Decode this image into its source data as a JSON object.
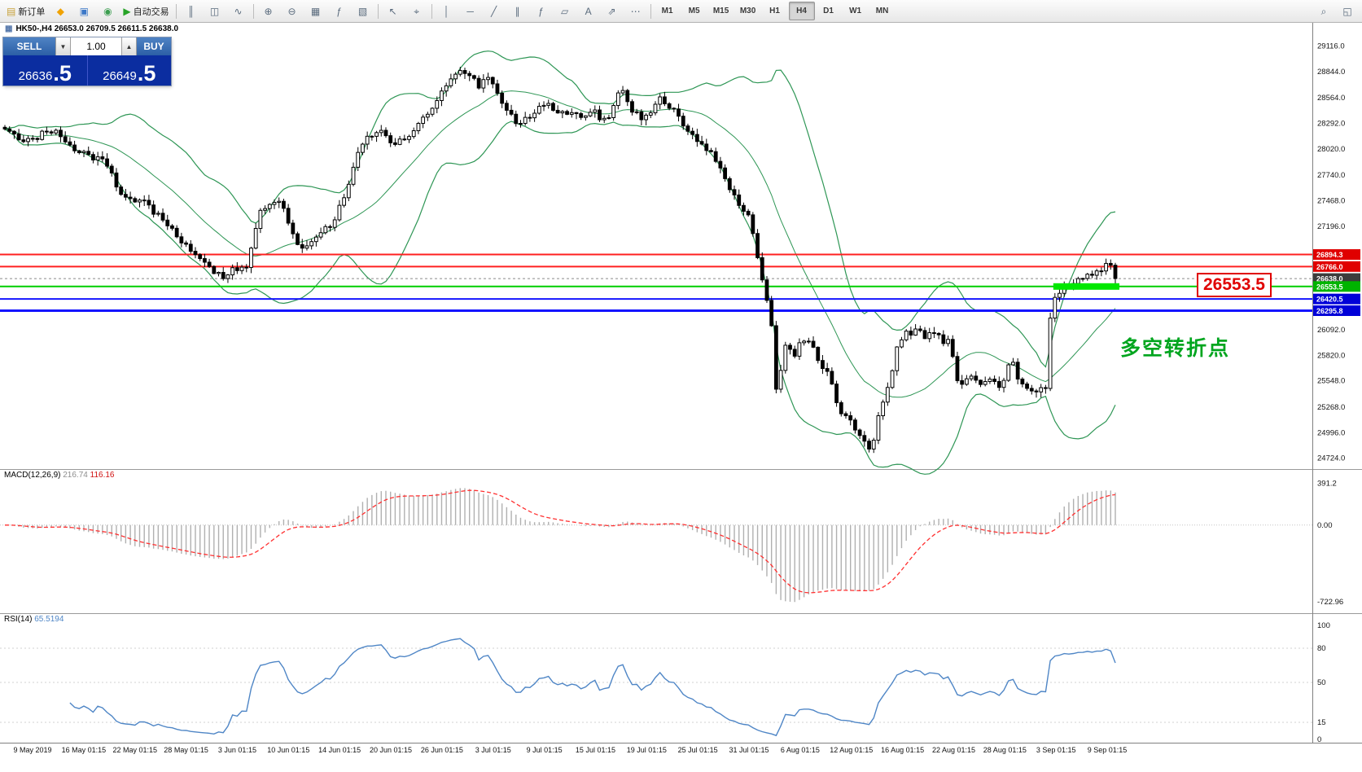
{
  "toolbar": {
    "groups": [
      {
        "items": [
          {
            "name": "new-order-button",
            "icon": "order-icon",
            "glyph": "▤",
            "glyph_color": "#c8a23a",
            "label": "新订单"
          }
        ]
      },
      {
        "items": [
          {
            "name": "metaquotes-market-button",
            "icon": "diamond-icon",
            "glyph": "◆",
            "glyph_color": "#f0a202"
          },
          {
            "name": "data-window-button",
            "icon": "monitor-icon",
            "glyph": "▣",
            "glyph_color": "#3c78c8"
          },
          {
            "name": "community-button",
            "icon": "globe-icon",
            "glyph": "◉",
            "glyph_color": "#3c9e50"
          }
        ]
      },
      {
        "items": [
          {
            "name": "autotrading-button",
            "icon": "play-icon",
            "glyph": "▶",
            "glyph_color": "#27a327",
            "label": "自动交易"
          }
        ]
      },
      {
        "sep": true
      },
      {
        "items": [
          {
            "name": "bar-chart-button",
            "icon": "bars-icon",
            "glyph": "║"
          },
          {
            "name": "candlestick-chart-button",
            "icon": "candles-icon",
            "glyph": "◫"
          },
          {
            "name": "line-chart-button",
            "icon": "line-icon",
            "glyph": "∿"
          }
        ]
      },
      {
        "sep": true
      },
      {
        "items": [
          {
            "name": "zoom-in-button",
            "icon": "zoom-in-icon",
            "glyph": "⊕"
          },
          {
            "name": "zoom-out-button",
            "icon": "zoom-out-icon",
            "glyph": "⊖"
          },
          {
            "name": "tile-windows-button",
            "icon": "grid-icon",
            "glyph": "▦"
          },
          {
            "name": "indicators-button",
            "icon": "function-icon",
            "glyph": "ƒ"
          },
          {
            "name": "templates-button",
            "icon": "template-icon",
            "glyph": "▧"
          }
        ]
      },
      {
        "sep": true
      },
      {
        "items": [
          {
            "name": "cursor-button",
            "icon": "cursor-icon",
            "glyph": "↖"
          },
          {
            "name": "crosshair-button",
            "icon": "crosshair-icon",
            "glyph": "⌖"
          }
        ]
      },
      {
        "sep": true
      },
      {
        "items": [
          {
            "name": "vertical-line-button",
            "icon": "vline-icon",
            "glyph": "│"
          },
          {
            "name": "horizontal-line-button",
            "icon": "hline-icon",
            "glyph": "─"
          },
          {
            "name": "trendline-button",
            "icon": "trendline-icon",
            "glyph": "╱"
          },
          {
            "name": "equidistant-channel-button",
            "icon": "channel-icon",
            "glyph": "∥"
          },
          {
            "name": "fibonacci-button",
            "icon": "fibonacci-icon",
            "glyph": "ƒ"
          },
          {
            "name": "shapes-button",
            "icon": "shape-icon",
            "glyph": "▱"
          },
          {
            "name": "text-label-button",
            "icon": "text-icon",
            "glyph": "A"
          },
          {
            "name": "arrows-button",
            "icon": "arrow-icon",
            "glyph": "⇗"
          },
          {
            "name": "more-objects-button",
            "icon": "ellipsis-icon",
            "glyph": "⋯"
          }
        ]
      },
      {
        "sep": true
      }
    ],
    "timeframes": {
      "options": [
        "M1",
        "M5",
        "M15",
        "M30",
        "H1",
        "H4",
        "D1",
        "W1",
        "MN"
      ],
      "active": "H4"
    },
    "right_items": [
      {
        "name": "symbol-search-button",
        "icon": "search-icon",
        "glyph": "⌕"
      },
      {
        "name": "window-list-button",
        "icon": "window-icon",
        "glyph": "◱"
      }
    ]
  },
  "chart": {
    "symbol_line": "HK50-,H4  26653.0 26709.5 26611.5 26638.0"
  },
  "trade_panel": {
    "sell_label": "SELL",
    "buy_label": "BUY",
    "volume": "1.00",
    "dropdown_glyph": "▼",
    "stepper_glyph": "▲",
    "sell_price_main": "26636",
    "sell_price_frac": ".5",
    "buy_price_main": "26649",
    "buy_price_frac": ".5"
  },
  "levels": [
    {
      "label": "26894.3",
      "value": 26894.3,
      "color": "#ff2020",
      "width": 2,
      "tag_bg": "#e00000"
    },
    {
      "label": "26766.0",
      "value": 26766.0,
      "color": "#ff2020",
      "width": 2,
      "tag_bg": "#e00000"
    },
    {
      "label": "26638.0",
      "value": 26638.0,
      "color": "#8a8a8a",
      "width": 1,
      "dash": true,
      "tag_bg": "#3c3c3c"
    },
    {
      "label": "26553.5",
      "value": 26553.5,
      "color": "#00ce00",
      "width": 2,
      "tag_bg": "#00b400",
      "highlight": true
    },
    {
      "label": "26420.5",
      "value": 26420.5,
      "color": "#1414ff",
      "width": 2,
      "tag_bg": "#0000d8"
    },
    {
      "label": "26295.8",
      "value": 26295.8,
      "color": "#1414ff",
      "width": 3,
      "tag_bg": "#0000d8"
    }
  ],
  "y_axis": [
    "29116.0",
    "28844.0",
    "28564.0",
    "28292.0",
    "28020.0",
    "27740.0",
    "27468.0",
    "27196.0",
    "26092.0",
    "25820.0",
    "25548.0",
    "25268.0",
    "24996.0",
    "24724.0"
  ],
  "macd": {
    "title": "MACD(12,26,9)",
    "value_main": "216.74",
    "value_signal": "116.16",
    "axis_labels": [
      {
        "text": "391.2",
        "value": 391.2
      },
      {
        "text": "0.00",
        "value": 0
      },
      {
        "text": "-722.96",
        "value": -722.96
      }
    ]
  },
  "rsi": {
    "title": "RSI(14)",
    "value": "65.5194",
    "axis_labels": [
      {
        "text": "100",
        "value": 100
      },
      {
        "text": "80",
        "value": 80
      },
      {
        "text": "50",
        "value": 50
      },
      {
        "text": "15",
        "value": 15
      },
      {
        "text": "0",
        "value": 0
      }
    ],
    "levels": [
      80,
      50,
      15
    ]
  },
  "dates": [
    "9 May 2019",
    "16 May 01:15",
    "22 May 01:15",
    "28 May 01:15",
    "3 Jun 01:15",
    "10 Jun 01:15",
    "14 Jun 01:15",
    "20 Jun 01:15",
    "26 Jun 01:15",
    "3 Jul 01:15",
    "9 Jul 01:15",
    "15 Jul 01:15",
    "19 Jul 01:15",
    "25 Jul 01:15",
    "31 Jul 01:15",
    "6 Aug 01:15",
    "12 Aug 01:15",
    "16 Aug 01:15",
    "22 Aug 01:15",
    "28 Aug 01:15",
    "3 Sep 01:15",
    "9 Sep 01:15"
  ],
  "annotations": {
    "key_level": "26553.5",
    "turning_point": "多空转折点"
  },
  "colors": {
    "band_green": "#2e9655",
    "up_candle": "#ffffff",
    "down_candle": "#000000",
    "candle_outline": "#000000",
    "macd_histogram": "#b0b0b0",
    "macd_signal": "#ff3030",
    "rsi_line": "#4f86c6",
    "highlight_green": "#00e800",
    "axis_line": "#808080"
  },
  "chart_data": {
    "type": "candlestick",
    "symbol": "HK50",
    "timeframe": "H4",
    "ohlc_current": {
      "open": 26653.0,
      "high": 26709.5,
      "low": 26611.5,
      "close": 26638.0
    },
    "overlays": [
      "bollinger_bands(20,2)"
    ],
    "price_axis_range": [
      24660,
      29320
    ],
    "price_anchors": [
      [
        0,
        28250
      ],
      [
        32,
        28100
      ],
      [
        64,
        28220
      ],
      [
        96,
        27980
      ],
      [
        128,
        27900
      ],
      [
        149,
        27520
      ],
      [
        171,
        27480
      ],
      [
        197,
        27300
      ],
      [
        224,
        27000
      ],
      [
        251,
        26800
      ],
      [
        272,
        26650
      ],
      [
        288,
        26750
      ],
      [
        304,
        26800
      ],
      [
        320,
        27350
      ],
      [
        341,
        27500
      ],
      [
        352,
        27300
      ],
      [
        368,
        26950
      ],
      [
        384,
        27050
      ],
      [
        405,
        27200
      ],
      [
        421,
        27450
      ],
      [
        437,
        27900
      ],
      [
        453,
        28150
      ],
      [
        469,
        28200
      ],
      [
        485,
        28050
      ],
      [
        501,
        28150
      ],
      [
        517,
        28300
      ],
      [
        533,
        28450
      ],
      [
        554,
        28780
      ],
      [
        570,
        28860
      ],
      [
        587,
        28700
      ],
      [
        602,
        28750
      ],
      [
        618,
        28500
      ],
      [
        634,
        28300
      ],
      [
        650,
        28350
      ],
      [
        666,
        28500
      ],
      [
        682,
        28450
      ],
      [
        698,
        28400
      ],
      [
        714,
        28350
      ],
      [
        730,
        28400
      ],
      [
        746,
        28300
      ],
      [
        762,
        28650
      ],
      [
        778,
        28400
      ],
      [
        794,
        28350
      ],
      [
        810,
        28550
      ],
      [
        826,
        28450
      ],
      [
        842,
        28250
      ],
      [
        858,
        28100
      ],
      [
        874,
        27950
      ],
      [
        890,
        27700
      ],
      [
        906,
        27450
      ],
      [
        919,
        27350
      ],
      [
        930,
        26900
      ],
      [
        940,
        26450
      ],
      [
        947,
        26200
      ],
      [
        954,
        25400
      ],
      [
        965,
        25900
      ],
      [
        975,
        25800
      ],
      [
        986,
        26000
      ],
      [
        997,
        25900
      ],
      [
        1007,
        25750
      ],
      [
        1018,
        25600
      ],
      [
        1029,
        25250
      ],
      [
        1039,
        25150
      ],
      [
        1050,
        25050
      ],
      [
        1061,
        24900
      ],
      [
        1071,
        24800
      ],
      [
        1082,
        25300
      ],
      [
        1093,
        25500
      ],
      [
        1103,
        26000
      ],
      [
        1114,
        26050
      ],
      [
        1125,
        26100
      ],
      [
        1135,
        26000
      ],
      [
        1146,
        26100
      ],
      [
        1157,
        25950
      ],
      [
        1167,
        26000
      ],
      [
        1178,
        25450
      ],
      [
        1189,
        25600
      ],
      [
        1199,
        25550
      ],
      [
        1210,
        25500
      ],
      [
        1221,
        25550
      ],
      [
        1231,
        25450
      ],
      [
        1242,
        25850
      ],
      [
        1252,
        25500
      ],
      [
        1263,
        25450
      ],
      [
        1274,
        25400
      ],
      [
        1285,
        25500
      ],
      [
        1292,
        26450
      ],
      [
        1301,
        26500
      ],
      [
        1311,
        26550
      ],
      [
        1322,
        26600
      ],
      [
        1332,
        26650
      ],
      [
        1343,
        26700
      ],
      [
        1354,
        26750
      ],
      [
        1362,
        26850
      ],
      [
        1370,
        26638
      ]
    ]
  }
}
